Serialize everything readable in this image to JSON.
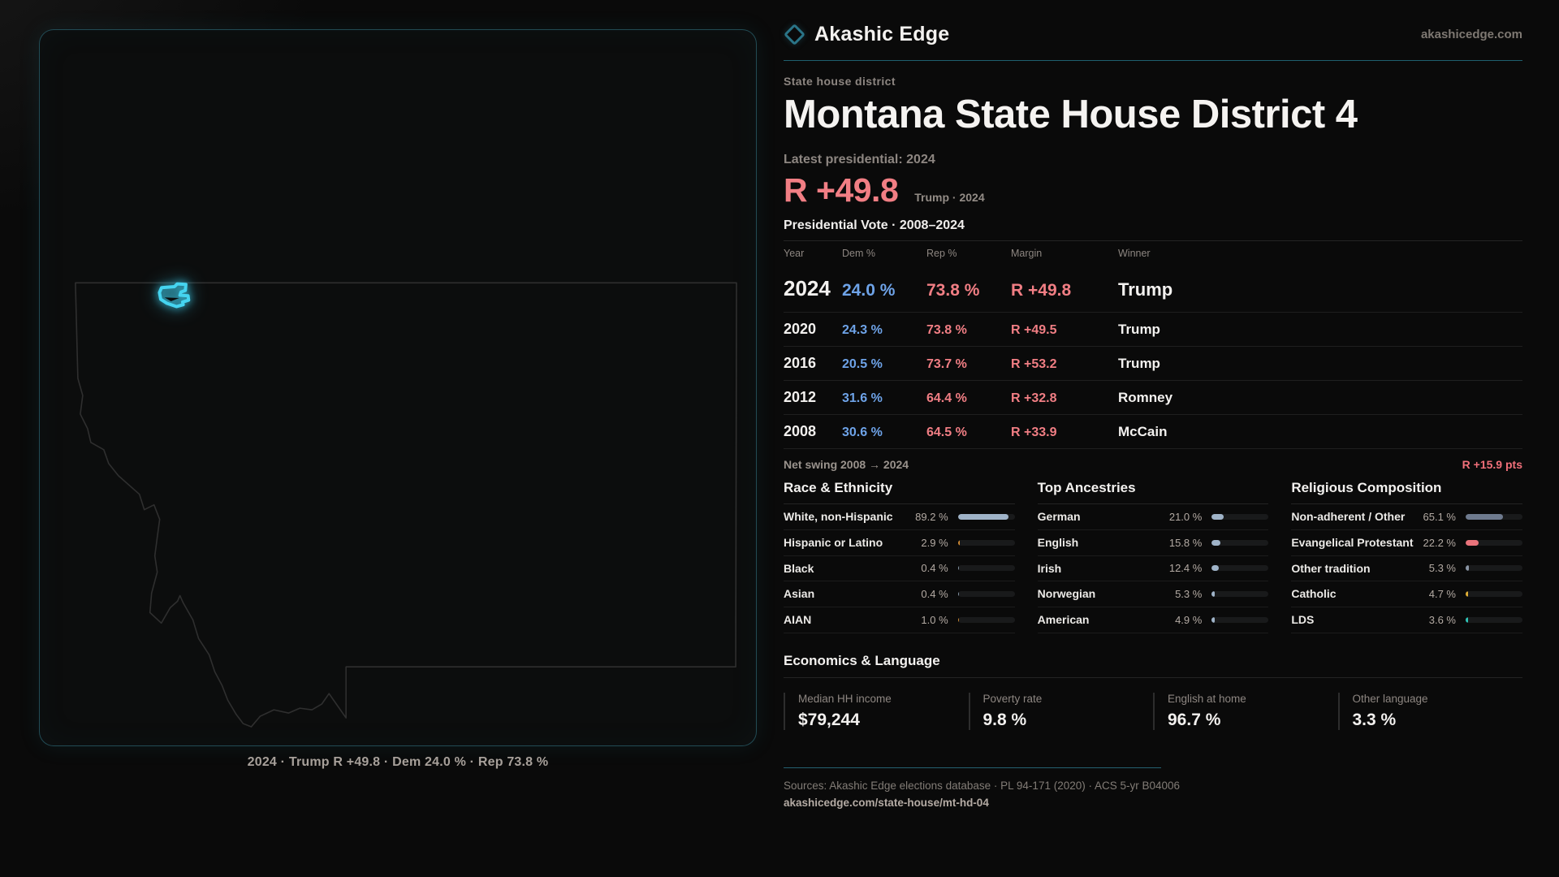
{
  "brand": {
    "name": "Akashic Edge",
    "domain": "akashicedge.com"
  },
  "page": {
    "kicker": "State house district",
    "title": "Montana State House District 4"
  },
  "latest": {
    "label": "Latest presidential: 2024",
    "margin": "R +49.8",
    "detail": "Trump · 2024"
  },
  "table": {
    "title": "Presidential Vote · 2008–2024",
    "columns": [
      "Year",
      "Dem %",
      "Rep %",
      "Margin",
      "Winner"
    ],
    "rows": [
      {
        "year": "2024",
        "dem": "24.0 %",
        "rep": "73.8 %",
        "margin": "R +49.8",
        "winner": "Trump"
      },
      {
        "year": "2020",
        "dem": "24.3 %",
        "rep": "73.8 %",
        "margin": "R +49.5",
        "winner": "Trump"
      },
      {
        "year": "2016",
        "dem": "20.5 %",
        "rep": "73.7 %",
        "margin": "R +53.2",
        "winner": "Trump"
      },
      {
        "year": "2012",
        "dem": "31.6 %",
        "rep": "64.4 %",
        "margin": "R +32.8",
        "winner": "Romney"
      },
      {
        "year": "2008",
        "dem": "30.6 %",
        "rep": "64.5 %",
        "margin": "R +33.9",
        "winner": "McCain"
      }
    ]
  },
  "net_swing": {
    "label": "Net swing 2008 → 2024",
    "value": "R +15.9 pts"
  },
  "demographics": {
    "race": {
      "title": "Race & Ethnicity",
      "rows": [
        {
          "label": "White, non-Hispanic",
          "value": "89.2 %",
          "pct": 89.2,
          "color": "#9fb3c8"
        },
        {
          "label": "Hispanic or Latino",
          "value": "2.9 %",
          "pct": 2.9,
          "color": "#d08a33"
        },
        {
          "label": "Black",
          "value": "0.4 %",
          "pct": 0.4,
          "color": "#8a9aab"
        },
        {
          "label": "Asian",
          "value": "0.4 %",
          "pct": 0.4,
          "color": "#8a9aab"
        },
        {
          "label": "AIAN",
          "value": "1.0 %",
          "pct": 1.0,
          "color": "#d08a33"
        }
      ]
    },
    "ancestries": {
      "title": "Top Ancestries",
      "rows": [
        {
          "label": "German",
          "value": "21.0 %",
          "pct": 21.0,
          "color": "#9fb3c8"
        },
        {
          "label": "English",
          "value": "15.8 %",
          "pct": 15.8,
          "color": "#9fb3c8"
        },
        {
          "label": "Irish",
          "value": "12.4 %",
          "pct": 12.4,
          "color": "#9fb3c8"
        },
        {
          "label": "Norwegian",
          "value": "5.3 %",
          "pct": 5.3,
          "color": "#9fb3c8"
        },
        {
          "label": "American",
          "value": "4.9 %",
          "pct": 4.9,
          "color": "#9fb3c8"
        }
      ]
    },
    "religion": {
      "title": "Religious Composition",
      "rows": [
        {
          "label": "Non-adherent / Other",
          "value": "65.1 %",
          "pct": 65.1,
          "color": "#6e7a8e"
        },
        {
          "label": "Evangelical Protestant",
          "value": "22.2 %",
          "pct": 22.2,
          "color": "#ea737b"
        },
        {
          "label": "Other tradition",
          "value": "5.3 %",
          "pct": 5.3,
          "color": "#8a95a5"
        },
        {
          "label": "Catholic",
          "value": "4.7 %",
          "pct": 4.7,
          "color": "#e0ae35"
        },
        {
          "label": "LDS",
          "value": "3.6 %",
          "pct": 3.6,
          "color": "#2fc4b8"
        }
      ]
    }
  },
  "economics": {
    "title": "Economics & Language",
    "stats": [
      {
        "label": "Median HH income",
        "value": "$79,244"
      },
      {
        "label": "Poverty rate",
        "value": "9.8 %"
      },
      {
        "label": "English at home",
        "value": "96.7 %"
      },
      {
        "label": "Other language",
        "value": "3.3 %"
      }
    ]
  },
  "map": {
    "caption": "2024 · Trump R +49.8 · Dem 24.0 % · Rep 73.8 %"
  },
  "footer": {
    "sources": "Sources: Akashic Edge elections database · PL 94-171 (2020) · ACS 5-yr B04006",
    "permalink": "akashicedge.com/state-house/mt-hd-04"
  },
  "colors": {
    "dem_blue": "#6ea3e8",
    "rep_red": "#f17e84",
    "swing_red": "#f2707a",
    "district_cyan": "#3fd2f2",
    "panel_border_teal": "#2a7487"
  }
}
